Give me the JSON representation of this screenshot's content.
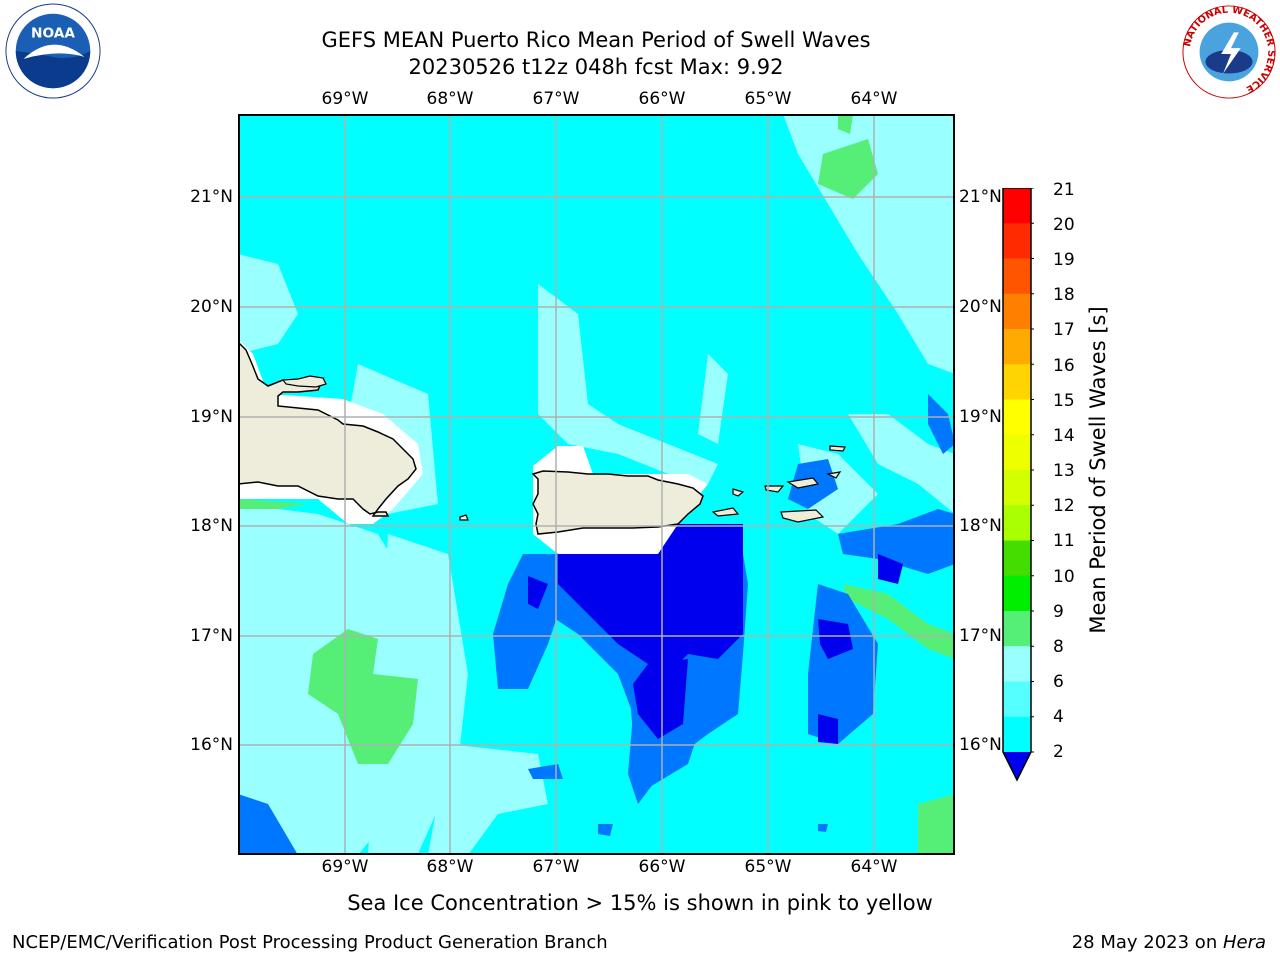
{
  "title": {
    "line1": "GEFS MEAN Puerto Rico Mean Period of Swell Waves",
    "line2": "20230526 t12z 048h fcst   Max: 9.92"
  },
  "map": {
    "longitude_labels": [
      "69°W",
      "68°W",
      "67°W",
      "66°W",
      "65°W",
      "64°W"
    ],
    "latitude_labels": [
      "21°N",
      "20°N",
      "19°N",
      "18°N",
      "17°N",
      "16°N"
    ],
    "ocean_color": "#00ffff",
    "land_color": "#eeecda",
    "grid_color": "#b0b0b0"
  },
  "colorbar": {
    "label": "Mean Period of Swell Waves [s]",
    "ticks": [
      "21",
      "20",
      "19",
      "18",
      "17",
      "16",
      "15",
      "14",
      "13",
      "12",
      "11",
      "10",
      "9",
      "8",
      "6",
      "4",
      "2"
    ],
    "colors": [
      "#ff0000",
      "#ff2a00",
      "#ff5500",
      "#ff8000",
      "#ffaa00",
      "#ffd400",
      "#ffff00",
      "#eeff00",
      "#d4ff00",
      "#aaff00",
      "#44dd00",
      "#00ee00",
      "#55ee77",
      "#99ffff",
      "#55ffff",
      "#00ffff",
      "#0077ff",
      "#0000ee"
    ]
  },
  "note": "Sea Ice Concentration > 15% is shown in pink to yellow",
  "footer": {
    "left": "NCEP/EMC/Verification Post Processing Product Generation Branch",
    "date": "28 May 2023 on ",
    "machine": "Hera"
  },
  "logos": {
    "noaa_text": "NOAA",
    "nws_ring_text": "NATIONAL WEATHER SERVICE"
  }
}
